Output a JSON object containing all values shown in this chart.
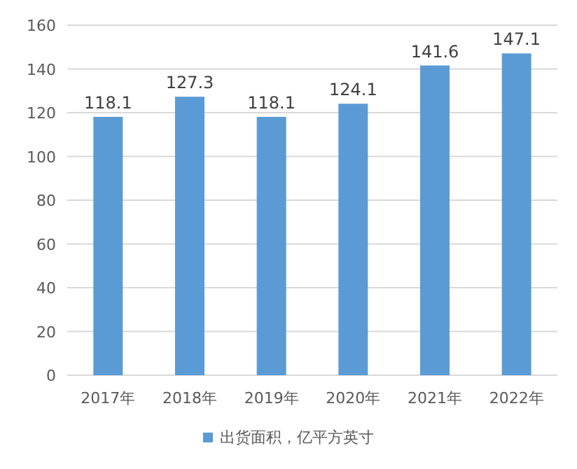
{
  "chart_data": {
    "type": "bar",
    "categories": [
      "2017年",
      "2018年",
      "2019年",
      "2020年",
      "2021年",
      "2022年"
    ],
    "series": [
      {
        "name": "出货面积，亿平方英寸",
        "color": "#5b9bd5",
        "values": [
          118.1,
          127.3,
          118.1,
          124.1,
          141.6,
          147.1
        ]
      }
    ],
    "ylim": [
      0,
      160
    ],
    "yticks": [
      0,
      20,
      40,
      60,
      80,
      100,
      120,
      140,
      160
    ],
    "grid": "y",
    "legend": "bottom",
    "data_labels": true
  }
}
